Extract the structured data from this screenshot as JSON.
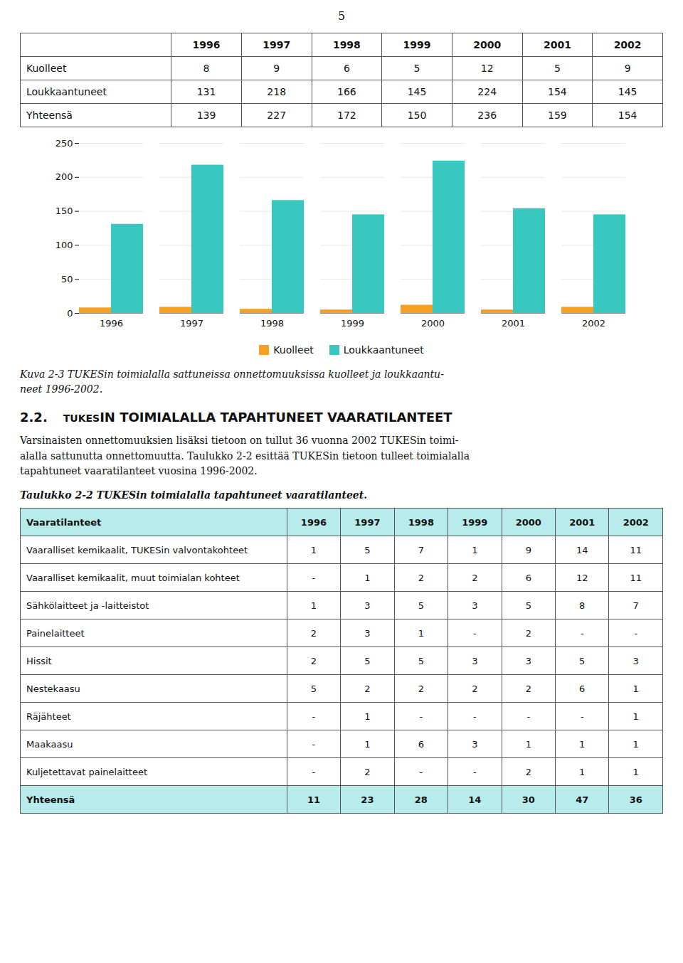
{
  "page_number": "5",
  "top_table": {
    "columns": [
      "1996",
      "1997",
      "1998",
      "1999",
      "2000",
      "2001",
      "2002"
    ],
    "rows": [
      {
        "label": "Kuolleet",
        "values": [
          8,
          9,
          6,
          5,
          12,
          5,
          9
        ]
      },
      {
        "label": "Loukkaantuneet",
        "values": [
          131,
          218,
          166,
          145,
          224,
          154,
          145
        ]
      },
      {
        "label": "Yhteensä",
        "values": [
          139,
          227,
          172,
          150,
          236,
          159,
          154
        ]
      }
    ]
  },
  "chart_data": {
    "type": "bar",
    "categories": [
      "1996",
      "1997",
      "1998",
      "1999",
      "2000",
      "2001",
      "2002"
    ],
    "series": [
      {
        "name": "Kuolleet",
        "color": "#F5A020",
        "values": [
          8,
          9,
          6,
          5,
          12,
          5,
          9
        ]
      },
      {
        "name": "Loukkaantuneet",
        "color": "#38C8C0",
        "values": [
          131,
          218,
          166,
          145,
          224,
          154,
          145
        ]
      }
    ],
    "ylim": [
      0,
      250
    ],
    "yticks": [
      0,
      50,
      100,
      150,
      200,
      250
    ],
    "grid": true,
    "legend": "bottom"
  },
  "figure_caption": [
    "Kuva 2-3   TUKESin toimialalla sattuneissa onnettomuuksissa kuolleet ja loukkaantu-",
    "neet 1996-2002."
  ],
  "section_heading": [
    "2.2.",
    "TUKES",
    "IN TOIMIALALLA TAPAHTUNEET VAARATILANTEET"
  ],
  "body_text": [
    "Varsinaisten onnettomuuksien lisäksi tietoon on tullut 36 vuonna 2002 TUKESin toimi-",
    "alalla sattunutta onnettomuutta. Taulukko 2-2 esittää TUKESin tietoon tulleet toimialalla",
    "tapahtuneet vaaratilanteet vuosina 1996-2002."
  ],
  "table2_caption": "Taulukko 2-2   TUKESin toimialalla tapahtuneet vaaratilanteet.",
  "table2": {
    "header": "Vaaratilanteet",
    "columns": [
      "1996",
      "1997",
      "1998",
      "1999",
      "2000",
      "2001",
      "2002"
    ],
    "header_color": "#B8ECEC",
    "rows": [
      {
        "label": "Vaaralliset kemikaalit, TUKESin valvontakohteet",
        "values": [
          1,
          5,
          7,
          1,
          9,
          14,
          11
        ]
      },
      {
        "label": "Vaaralliset kemikaalit, muut toimialan kohteet",
        "values": [
          "-",
          1,
          2,
          2,
          6,
          12,
          11
        ]
      },
      {
        "label": "Sähkölaitteet ja -laitteistot",
        "values": [
          1,
          3,
          5,
          3,
          5,
          8,
          7
        ]
      },
      {
        "label": "Painelaitteet",
        "values": [
          2,
          3,
          1,
          "-",
          2,
          "-",
          "-"
        ]
      },
      {
        "label": "Hissit",
        "values": [
          2,
          5,
          5,
          3,
          3,
          5,
          3
        ]
      },
      {
        "label": "Nestekaasu",
        "values": [
          5,
          2,
          2,
          2,
          2,
          6,
          1
        ]
      },
      {
        "label": "Räjähteet",
        "values": [
          "-",
          1,
          "-",
          "-",
          "-",
          "-",
          1
        ]
      },
      {
        "label": "Maakaasu",
        "values": [
          "-",
          1,
          6,
          3,
          1,
          1,
          1
        ]
      },
      {
        "label": "Kuljetettavat painelaitteet",
        "values": [
          "-",
          2,
          "-",
          "-",
          2,
          1,
          1
        ]
      }
    ],
    "footer": {
      "label": "Yhteensä",
      "values": [
        11,
        23,
        28,
        14,
        30,
        47,
        36
      ]
    },
    "footer_color": "#B8ECEC"
  }
}
